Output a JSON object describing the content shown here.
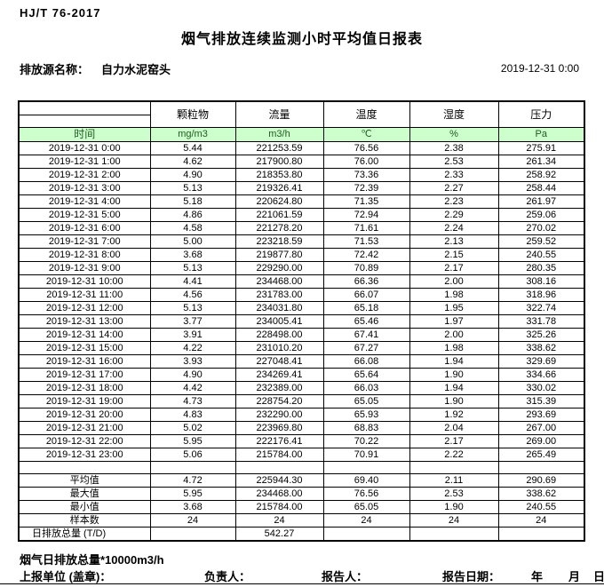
{
  "header": {
    "standard": "HJ/T 76-2017",
    "title": "烟气排放连续监测小时平均值日报表",
    "source_label": "排放源名称：",
    "source_name": "自力水泥窑头",
    "datetime": "2019-12-31 0:00"
  },
  "table": {
    "time_label": "时间",
    "columns": [
      "颗粒物",
      "流量",
      "温度",
      "湿度",
      "压力"
    ],
    "units": [
      "mg/m3",
      "m3/h",
      "℃",
      "%",
      "Pa"
    ],
    "rows": [
      [
        "2019-12-31 0:00",
        "5.44",
        "221253.59",
        "76.56",
        "2.38",
        "275.91"
      ],
      [
        "2019-12-31 1:00",
        "4.62",
        "217900.80",
        "76.00",
        "2.53",
        "261.34"
      ],
      [
        "2019-12-31 2:00",
        "4.90",
        "218353.80",
        "73.36",
        "2.33",
        "258.92"
      ],
      [
        "2019-12-31 3:00",
        "5.13",
        "219326.41",
        "72.39",
        "2.27",
        "258.44"
      ],
      [
        "2019-12-31 4:00",
        "5.18",
        "220624.80",
        "71.35",
        "2.23",
        "261.97"
      ],
      [
        "2019-12-31 5:00",
        "4.86",
        "221061.59",
        "72.94",
        "2.29",
        "259.06"
      ],
      [
        "2019-12-31 6:00",
        "4.58",
        "221278.20",
        "71.61",
        "2.24",
        "270.02"
      ],
      [
        "2019-12-31 7:00",
        "5.00",
        "223218.59",
        "71.53",
        "2.13",
        "259.52"
      ],
      [
        "2019-12-31 8:00",
        "3.68",
        "219877.80",
        "72.42",
        "2.15",
        "240.55"
      ],
      [
        "2019-12-31 9:00",
        "5.13",
        "229290.00",
        "70.89",
        "2.17",
        "280.35"
      ],
      [
        "2019-12-31 10:00",
        "4.41",
        "234468.00",
        "66.36",
        "2.00",
        "308.16"
      ],
      [
        "2019-12-31 11:00",
        "4.56",
        "231783.00",
        "66.07",
        "1.98",
        "318.96"
      ],
      [
        "2019-12-31 12:00",
        "5.13",
        "234031.80",
        "65.18",
        "1.95",
        "322.74"
      ],
      [
        "2019-12-31 13:00",
        "3.77",
        "234005.41",
        "65.46",
        "1.97",
        "331.78"
      ],
      [
        "2019-12-31 14:00",
        "3.91",
        "228498.00",
        "67.41",
        "2.00",
        "325.26"
      ],
      [
        "2019-12-31 15:00",
        "4.22",
        "231010.20",
        "67.27",
        "1.98",
        "338.62"
      ],
      [
        "2019-12-31 16:00",
        "3.93",
        "227048.41",
        "66.08",
        "1.94",
        "329.69"
      ],
      [
        "2019-12-31 17:00",
        "4.90",
        "234269.41",
        "65.64",
        "1.90",
        "334.66"
      ],
      [
        "2019-12-31 18:00",
        "4.42",
        "232389.00",
        "66.03",
        "1.94",
        "330.02"
      ],
      [
        "2019-12-31 19:00",
        "4.73",
        "228754.20",
        "65.05",
        "1.90",
        "315.39"
      ],
      [
        "2019-12-31 20:00",
        "4.83",
        "232290.00",
        "65.93",
        "1.92",
        "293.69"
      ],
      [
        "2019-12-31 21:00",
        "5.02",
        "223969.80",
        "68.83",
        "2.04",
        "267.00"
      ],
      [
        "2019-12-31 22:00",
        "5.95",
        "222176.41",
        "70.22",
        "2.17",
        "269.00"
      ],
      [
        "2019-12-31 23:00",
        "5.06",
        "215784.00",
        "70.91",
        "2.22",
        "265.49"
      ]
    ],
    "summary": [
      [
        "平均值",
        "4.72",
        "225944.30",
        "69.40",
        "2.11",
        "290.69"
      ],
      [
        "最大值",
        "5.95",
        "234468.00",
        "76.56",
        "2.53",
        "338.62"
      ],
      [
        "最小值",
        "3.68",
        "215784.00",
        "65.05",
        "1.90",
        "240.55"
      ],
      [
        "样本数",
        "24",
        "24",
        "24",
        "24",
        "24"
      ],
      [
        "日排放总量 (T/D)",
        "",
        "542.27",
        "",
        "",
        ""
      ]
    ]
  },
  "footer": {
    "note": "烟气日排放总量*10000m3/h",
    "report_unit_label": "上报单位 (盖章)：",
    "responsible_label": "负责人：",
    "reporter_label": "报告人：",
    "report_date_label": "报告日期：",
    "year_label": "年",
    "month_label": "月",
    "day_label": "日"
  },
  "colors": {
    "header_green_bg": "#ccffcc",
    "header_green_text": "#1f5c1f",
    "border_color": "#000000"
  }
}
